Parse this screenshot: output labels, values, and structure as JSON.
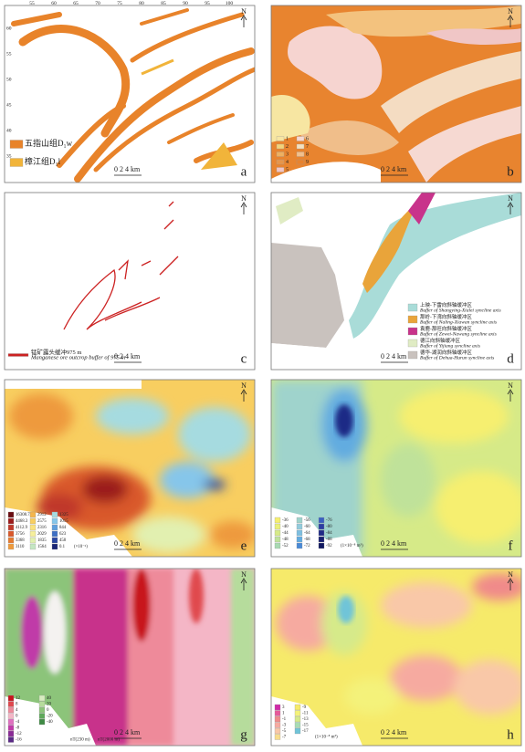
{
  "panels": [
    {
      "label": "a",
      "scale": "0  2  4 km",
      "north": "N",
      "top_ticks": [
        "55",
        "60",
        "65",
        "70",
        "75",
        "80",
        "85",
        "90",
        "95",
        "100"
      ],
      "left_ticks": [
        "60",
        "55",
        "50",
        "45",
        "40",
        "35"
      ],
      "legend": {
        "items": [
          {
            "text": "五指山组D₁w",
            "color": "#e8832a"
          },
          {
            "text": "樟江组D₁l",
            "color": "#f1b43a"
          }
        ]
      }
    },
    {
      "label": "b",
      "scale": "0  2  4 km",
      "north": "N",
      "legend": {
        "items": [
          {
            "text": "1",
            "color": "#f7e6a2"
          },
          {
            "text": "2",
            "color": "#f3d27a"
          },
          {
            "text": "3",
            "color": "#eeb060"
          },
          {
            "text": "4",
            "color": "#e7954a"
          },
          {
            "text": "5",
            "color": "#f0c6c6"
          },
          {
            "text": "6",
            "color": "#f6d9d2"
          },
          {
            "text": "7",
            "color": "#f4e0c0"
          },
          {
            "text": "8",
            "color": "#f2c08c"
          },
          {
            "text": "9",
            "color": "#e8822e"
          }
        ]
      }
    },
    {
      "label": "c",
      "scale": "0  2  4 km",
      "north": "N",
      "legend": {
        "items": [
          {
            "text": "锰矿露头缓冲975 m",
            "text_en": "Manganese ore outcrop buffer of 975 m",
            "color": "#cc2222"
          }
        ]
      }
    },
    {
      "label": "d",
      "scale": "0  2  4 km",
      "north": "N",
      "legend": {
        "items": [
          {
            "text": "上映-下雷向斜轴缓冲区",
            "text_en": "Buffer of Shangying-Xialei syncline axis",
            "color": "#a9dcd8"
          },
          {
            "text": "那岭-下湾向斜轴缓冲区",
            "text_en": "Buffer of Naling-Xiawan syncline axis",
            "color": "#e9a43a"
          },
          {
            "text": "袁鹿-那旺向斜轴缓冲区",
            "text_en": "Buffer of Zewei-Nawang syncline axis",
            "color": "#c8338b"
          },
          {
            "text": "德江向斜轴缓冲区",
            "text_en": "Buffer of Yijiang syncline axis",
            "color": "#e0ecc4"
          },
          {
            "text": "德华-湖润向斜轴缓冲区",
            "text_en": "Buffer of Dehua-Hurun syncline axis",
            "color": "#c9c2be"
          }
        ]
      }
    },
    {
      "label": "e",
      "scale": "0  2  4 km",
      "north": "N",
      "legend": {
        "unit": "(×10⁻⁶)",
        "items": [
          {
            "text": "16308.73",
            "color": "#6a0d12"
          },
          {
            "text": "4468.3",
            "color": "#9b1b1b"
          },
          {
            "text": "4112.9",
            "color": "#c0392b"
          },
          {
            "text": "3756",
            "color": "#d9582a"
          },
          {
            "text": "3368",
            "color": "#e57a2f"
          },
          {
            "text": "3110",
            "color": "#ee9a3c"
          },
          {
            "text": "2912",
            "color": "#f4b64d"
          },
          {
            "text": "2575",
            "color": "#f8ce60"
          },
          {
            "text": "2316",
            "color": "#fae27d"
          },
          {
            "text": "2029",
            "color": "#f6ef9b"
          },
          {
            "text": "1835",
            "color": "#e2f0b0"
          },
          {
            "text": "1564",
            "color": "#c4e6c2"
          },
          {
            "text": "1325",
            "color": "#a6dbe0"
          },
          {
            "text": "1015",
            "color": "#86c6ea"
          },
          {
            "text": "844",
            "color": "#5f9fdc"
          },
          {
            "text": "623",
            "color": "#3e6fc4"
          },
          {
            "text": "458",
            "color": "#2a46a2"
          },
          {
            "text": "0.1",
            "color": "#1a2576"
          }
        ]
      }
    },
    {
      "label": "f",
      "scale": "0  2  4 km",
      "north": "N",
      "legend": {
        "unit": "(1×10⁻⁸ m³)",
        "items": [
          {
            "text": "-36",
            "color": "#f6ef70"
          },
          {
            "text": "-40",
            "color": "#eaf07a"
          },
          {
            "text": "-44",
            "color": "#d6ea88"
          },
          {
            "text": "-48",
            "color": "#bfe29a"
          },
          {
            "text": "-52",
            "color": "#a9d9b2"
          },
          {
            "text": "-56",
            "color": "#9fd3cc"
          },
          {
            "text": "-60",
            "color": "#92cbdc"
          },
          {
            "text": "-64",
            "color": "#7dbfe0"
          },
          {
            "text": "-68",
            "color": "#62ace0"
          },
          {
            "text": "-72",
            "color": "#4a8ad6"
          },
          {
            "text": "-76",
            "color": "#3a60c0"
          },
          {
            "text": "-80",
            "color": "#2c3ea2"
          },
          {
            "text": "-84",
            "color": "#1f2a86"
          },
          {
            "text": "-88",
            "color": "#182070"
          },
          {
            "text": "-92",
            "color": "#101860"
          }
        ]
      }
    },
    {
      "label": "g",
      "scale": "0  2  4 km",
      "north": "N",
      "legend": {
        "unit": "nT(230 m)",
        "unit2": "nT(2000 m)",
        "items": [
          {
            "text": "12",
            "color": "#c8141e"
          },
          {
            "text": "8",
            "color": "#e0484e"
          },
          {
            "text": "4",
            "color": "#ee8a9a"
          },
          {
            "text": "0",
            "color": "#f4b6c6"
          },
          {
            "text": "-4",
            "color": "#e070c0"
          },
          {
            "text": "-8",
            "color": "#c03aa8"
          },
          {
            "text": "-12",
            "color": "#8a2a96"
          },
          {
            "text": "-16",
            "color": "#5a2a86"
          },
          {
            "text": "40",
            "color": "#d8ecc0"
          },
          {
            "text": "20",
            "color": "#b6dc9c"
          },
          {
            "text": "0",
            "color": "#8cc47a"
          },
          {
            "text": "-20",
            "color": "#5ea85a"
          },
          {
            "text": "-40",
            "color": "#3e8a44"
          }
        ]
      }
    },
    {
      "label": "h",
      "scale": "0  2  4 km",
      "north": "N",
      "legend": {
        "unit": "(1×10⁻⁸ m³)",
        "items": [
          {
            "text": "3",
            "color": "#d02aa8"
          },
          {
            "text": "1",
            "color": "#e65a9a"
          },
          {
            "text": "-1",
            "color": "#f08a8a"
          },
          {
            "text": "-3",
            "color": "#f6aaa0"
          },
          {
            "text": "-5",
            "color": "#f9c8a8"
          },
          {
            "text": "-7",
            "color": "#f8dc8c"
          },
          {
            "text": "-9",
            "color": "#f6ea6a"
          },
          {
            "text": "-11",
            "color": "#f4f27a"
          },
          {
            "text": "-13",
            "color": "#d6ea8a"
          },
          {
            "text": "-15",
            "color": "#a8dcb4"
          },
          {
            "text": "-17",
            "color": "#70c4d8"
          }
        ]
      }
    }
  ]
}
